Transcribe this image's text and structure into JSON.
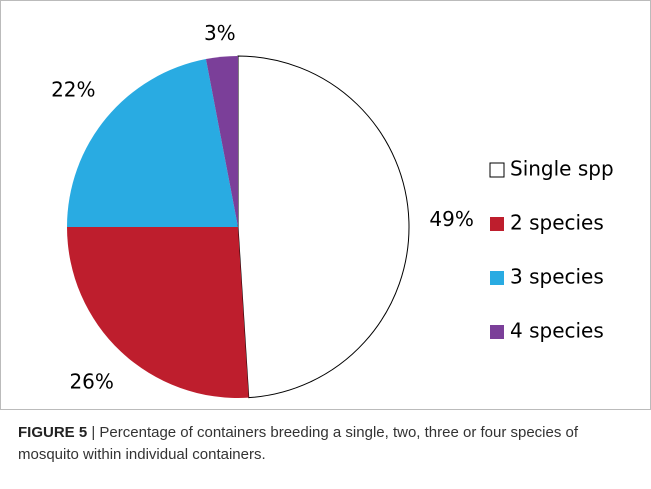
{
  "chart_data": {
    "type": "pie",
    "categories": [
      "Single spp",
      "2 species",
      "3 species",
      "4 species"
    ],
    "values": [
      49,
      26,
      22,
      3
    ],
    "value_labels": [
      "49%",
      "26%",
      "22%",
      "3%"
    ],
    "colors": [
      "#ffffff",
      "#be1e2d",
      "#29abe2",
      "#7b3f99"
    ],
    "legend": "right"
  },
  "caption": {
    "label": "FIGURE 5",
    "text": "| Percentage of containers breeding a single, two, three or four species of mosquito within individual containers."
  }
}
